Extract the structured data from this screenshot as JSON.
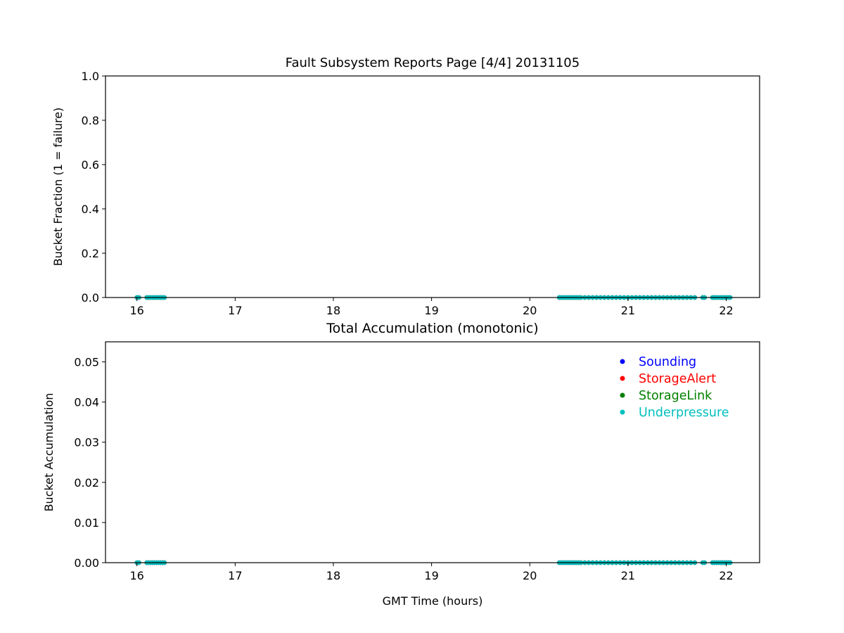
{
  "chart_data": [
    {
      "type": "scatter",
      "title": "Fault Subsystem Reports Page [4/4] 20131105",
      "xlabel": "",
      "ylabel": "Bucket Fraction (1 = failure)",
      "xlim": [
        15.68,
        22.34
      ],
      "ylim": [
        0,
        1.0
      ],
      "xticks": [
        "16",
        "17",
        "18",
        "19",
        "20",
        "21",
        "22"
      ],
      "yticks": [
        "0.0",
        "0.2",
        "0.4",
        "0.6",
        "0.8",
        "1.0"
      ],
      "grid": false,
      "x": [
        16.0,
        16.02,
        16.1,
        16.12,
        16.14,
        16.16,
        16.18,
        16.2,
        16.22,
        16.24,
        16.26,
        16.28,
        20.3,
        20.32,
        20.34,
        20.36,
        20.38,
        20.4,
        20.42,
        20.44,
        20.46,
        20.48,
        20.5,
        20.52,
        20.56,
        20.6,
        20.64,
        20.68,
        20.72,
        20.76,
        20.8,
        20.84,
        20.88,
        20.92,
        20.96,
        21.0,
        21.04,
        21.08,
        21.12,
        21.16,
        21.2,
        21.24,
        21.28,
        21.32,
        21.36,
        21.4,
        21.44,
        21.48,
        21.52,
        21.56,
        21.6,
        21.64,
        21.68,
        21.76,
        21.78,
        21.86,
        21.88,
        21.9,
        21.92,
        21.94,
        21.96,
        21.98,
        22.0,
        22.02,
        22.04
      ],
      "series": [
        {
          "name": "Sounding",
          "color": "#0000ff",
          "y_constant": 0
        },
        {
          "name": "StorageAlert",
          "color": "#ff0000",
          "y_constant": 0
        },
        {
          "name": "StorageLink",
          "color": "#008000",
          "y_constant": 0
        },
        {
          "name": "Underpressure",
          "color": "#00bfbf",
          "y_constant": 0
        }
      ]
    },
    {
      "type": "scatter",
      "title": "Total Accumulation (monotonic)",
      "xlabel": "GMT Time (hours)",
      "ylabel": "Bucket Accumulation",
      "xlim": [
        15.68,
        22.34
      ],
      "ylim": [
        0,
        0.055
      ],
      "xticks": [
        "16",
        "17",
        "18",
        "19",
        "20",
        "21",
        "22"
      ],
      "yticks": [
        "0.00",
        "0.01",
        "0.02",
        "0.03",
        "0.04",
        "0.05"
      ],
      "grid": false,
      "legend": "top-right",
      "x": [
        16.0,
        16.02,
        16.1,
        16.12,
        16.14,
        16.16,
        16.18,
        16.2,
        16.22,
        16.24,
        16.26,
        16.28,
        20.3,
        20.32,
        20.34,
        20.36,
        20.38,
        20.4,
        20.42,
        20.44,
        20.46,
        20.48,
        20.5,
        20.52,
        20.56,
        20.6,
        20.64,
        20.68,
        20.72,
        20.76,
        20.8,
        20.84,
        20.88,
        20.92,
        20.96,
        21.0,
        21.04,
        21.08,
        21.12,
        21.16,
        21.2,
        21.24,
        21.28,
        21.32,
        21.36,
        21.4,
        21.44,
        21.48,
        21.52,
        21.56,
        21.6,
        21.64,
        21.68,
        21.76,
        21.78,
        21.86,
        21.88,
        21.9,
        21.92,
        21.94,
        21.96,
        21.98,
        22.0,
        22.02,
        22.04
      ],
      "series": [
        {
          "name": "Sounding",
          "color": "#0000ff",
          "y_constant": 0
        },
        {
          "name": "StorageAlert",
          "color": "#ff0000",
          "y_constant": 0
        },
        {
          "name": "StorageLink",
          "color": "#008000",
          "y_constant": 0
        },
        {
          "name": "Underpressure",
          "color": "#00bfbf",
          "y_constant": 0
        }
      ]
    }
  ]
}
